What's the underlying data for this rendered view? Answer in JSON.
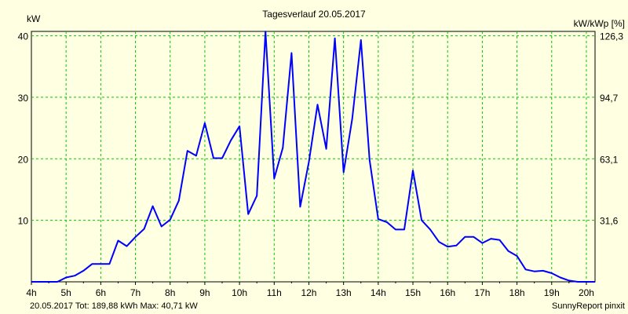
{
  "colors": {
    "background": "#ffffe1",
    "grid": "#00c800",
    "series": "#0000ff",
    "footer_left": "#0000ff",
    "axis": "#000000"
  },
  "chart_data": {
    "type": "line",
    "title": "Tagesverlauf 20.05.2017",
    "ylabel_left": "kW",
    "ylabel_right": "kW/kWp [%]",
    "xlim": [
      4,
      20.25
    ],
    "ylim": [
      0,
      40.71
    ],
    "y_ticks_left": [
      10,
      20,
      30,
      40
    ],
    "y_ticks_right": [
      "31,6",
      "63,1",
      "94,7",
      "126,3"
    ],
    "x_ticks": [
      "4h",
      "5h",
      "6h",
      "7h",
      "8h",
      "9h",
      "10h",
      "11h",
      "12h",
      "13h",
      "14h",
      "15h",
      "16h",
      "17h",
      "18h",
      "19h",
      "20h"
    ],
    "grid": true,
    "series": [
      {
        "x": [
          4.0,
          4.25,
          4.5,
          4.75,
          5.0,
          5.25,
          5.5,
          5.75,
          6.0,
          6.25,
          6.5,
          6.75,
          7.0,
          7.25,
          7.5,
          7.75,
          8.0,
          8.25,
          8.5,
          8.75,
          9.0,
          9.25,
          9.5,
          9.75,
          10.0,
          10.25,
          10.5,
          10.75,
          11.0,
          11.25,
          11.5,
          11.75,
          12.0,
          12.25,
          12.5,
          12.75,
          13.0,
          13.25,
          13.5,
          13.75,
          14.0,
          14.25,
          14.5,
          14.75,
          15.0,
          15.25,
          15.5,
          15.75,
          16.0,
          16.25,
          16.5,
          16.75,
          17.0,
          17.25,
          17.5,
          17.75,
          18.0,
          18.25,
          18.5,
          18.75,
          19.0,
          19.25,
          19.5,
          19.75,
          20.0,
          20.25
        ],
        "y": [
          0,
          0,
          0,
          0,
          0.7,
          1.0,
          1.8,
          2.9,
          2.9,
          2.9,
          6.7,
          5.8,
          7.3,
          8.6,
          12.3,
          9.0,
          10.1,
          13.2,
          21.3,
          20.5,
          25.8,
          20.1,
          20.1,
          23.0,
          25.3,
          11.0,
          14.0,
          40.7,
          16.8,
          21.8,
          37.2,
          12.2,
          19.5,
          28.8,
          21.6,
          39.6,
          17.8,
          26.5,
          39.3,
          19.8,
          10.2,
          9.7,
          8.5,
          8.5,
          18.1,
          10.0,
          8.5,
          6.5,
          5.7,
          5.9,
          7.3,
          7.3,
          6.3,
          7.0,
          6.8,
          5.0,
          4.2,
          2.0,
          1.7,
          1.8,
          1.4,
          0.7,
          0.2,
          0,
          0,
          0
        ]
      }
    ]
  },
  "footer": {
    "left": "20.05.2017 Tot: 189,88 kWh Max: 40,71 kW",
    "right": "SunnyReport pinxit"
  }
}
